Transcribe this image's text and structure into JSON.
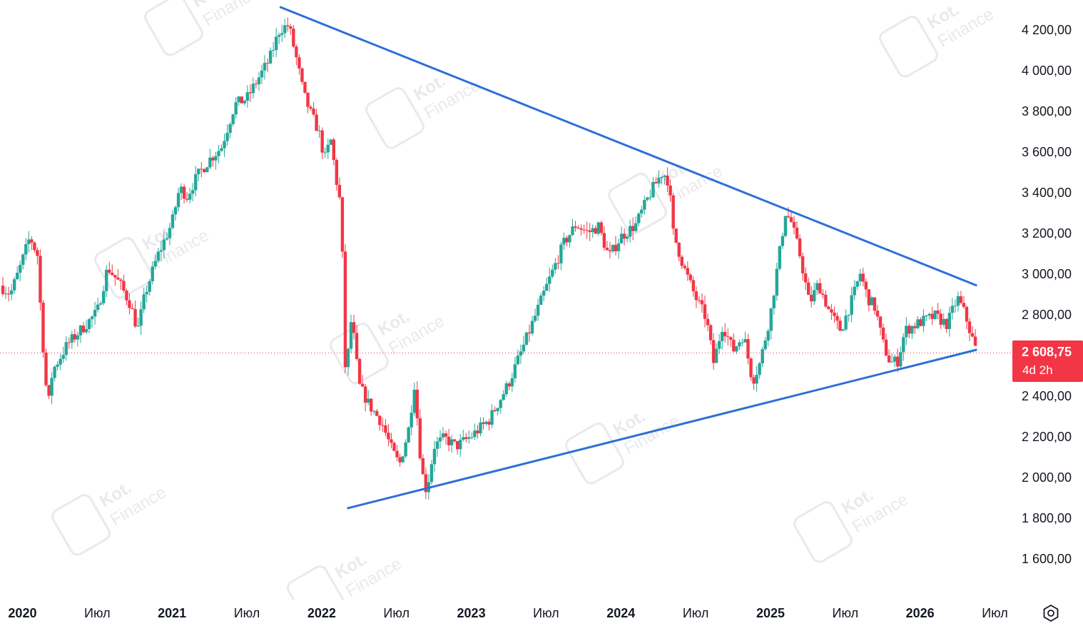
{
  "colors": {
    "up": "#26a69a",
    "down": "#f23645",
    "trendline": "#2e6fd6",
    "axis_text": "#131722",
    "current_price_line": "#f23645",
    "watermark": "#e9e9ee"
  },
  "price_label": {
    "value": "2 608,75",
    "countdown": "4d 2h"
  },
  "watermark_text": [
    "Kot.",
    "Finance"
  ],
  "settings_icon": "settings-icon",
  "chart_data": {
    "type": "candlestick",
    "title": "",
    "xlabel": "",
    "ylabel": "",
    "ylim": [
      1500,
      4300
    ],
    "y_axis_position": "right",
    "y_ticks": [
      {
        "value": 4200,
        "label": "4 200,00"
      },
      {
        "value": 4000,
        "label": "4 000,00"
      },
      {
        "value": 3800,
        "label": "3 800,00"
      },
      {
        "value": 3600,
        "label": "3 600,00"
      },
      {
        "value": 3400,
        "label": "3 400,00"
      },
      {
        "value": 3200,
        "label": "3 200,00"
      },
      {
        "value": 3000,
        "label": "3 000,00"
      },
      {
        "value": 2800,
        "label": "2 800,00"
      },
      {
        "value": 2400,
        "label": "2 400,00"
      },
      {
        "value": 2200,
        "label": "2 200,00"
      },
      {
        "value": 2000,
        "label": "2 000,00"
      },
      {
        "value": 1800,
        "label": "1 800,00"
      },
      {
        "value": 1600,
        "label": "1 600,00"
      }
    ],
    "x_range": [
      2019.85,
      2026.55
    ],
    "x_ticks": [
      {
        "value": 2020.0,
        "label": "2020",
        "bold": true
      },
      {
        "value": 2020.5,
        "label": "Июл",
        "bold": false
      },
      {
        "value": 2021.0,
        "label": "2021",
        "bold": true
      },
      {
        "value": 2021.5,
        "label": "Июл",
        "bold": false
      },
      {
        "value": 2022.0,
        "label": "2022",
        "bold": true
      },
      {
        "value": 2022.5,
        "label": "Июл",
        "bold": false
      },
      {
        "value": 2023.0,
        "label": "2023",
        "bold": true
      },
      {
        "value": 2023.5,
        "label": "Июл",
        "bold": false
      },
      {
        "value": 2024.0,
        "label": "2024",
        "bold": true
      },
      {
        "value": 2024.5,
        "label": "Июл",
        "bold": false
      },
      {
        "value": 2025.0,
        "label": "2025",
        "bold": true
      },
      {
        "value": 2025.5,
        "label": "Июл",
        "bold": false
      },
      {
        "value": 2026.0,
        "label": "2026",
        "bold": true
      },
      {
        "value": 2026.5,
        "label": "Июл",
        "bold": false
      }
    ],
    "current_price": 2608.75,
    "price_path": [
      [
        2019.85,
        2940
      ],
      [
        2019.92,
        2900
      ],
      [
        2019.98,
        3020
      ],
      [
        2020.05,
        3180
      ],
      [
        2020.1,
        3090
      ],
      [
        2020.13,
        2720
      ],
      [
        2020.17,
        2330
      ],
      [
        2020.2,
        2520
      ],
      [
        2020.3,
        2650
      ],
      [
        2020.4,
        2730
      ],
      [
        2020.5,
        2810
      ],
      [
        2020.57,
        3030
      ],
      [
        2020.65,
        2950
      ],
      [
        2020.72,
        2850
      ],
      [
        2020.77,
        2720
      ],
      [
        2020.82,
        2900
      ],
      [
        2020.9,
        3080
      ],
      [
        2021.0,
        3250
      ],
      [
        2021.05,
        3420
      ],
      [
        2021.1,
        3380
      ],
      [
        2021.17,
        3480
      ],
      [
        2021.25,
        3560
      ],
      [
        2021.33,
        3620
      ],
      [
        2021.42,
        3830
      ],
      [
        2021.5,
        3860
      ],
      [
        2021.57,
        3950
      ],
      [
        2021.65,
        4050
      ],
      [
        2021.72,
        4200
      ],
      [
        2021.78,
        4220
      ],
      [
        2021.83,
        4060
      ],
      [
        2021.88,
        3880
      ],
      [
        2021.93,
        3780
      ],
      [
        2021.98,
        3700
      ],
      [
        2022.02,
        3560
      ],
      [
        2022.06,
        3660
      ],
      [
        2022.1,
        3450
      ],
      [
        2022.13,
        3320
      ],
      [
        2022.16,
        2480
      ],
      [
        2022.2,
        2790
      ],
      [
        2022.25,
        2450
      ],
      [
        2022.32,
        2350
      ],
      [
        2022.4,
        2270
      ],
      [
        2022.47,
        2130
      ],
      [
        2022.52,
        2060
      ],
      [
        2022.58,
        2230
      ],
      [
        2022.62,
        2460
      ],
      [
        2022.66,
        2100
      ],
      [
        2022.69,
        1930
      ],
      [
        2022.72,
        2000
      ],
      [
        2022.75,
        2150
      ],
      [
        2022.82,
        2190
      ],
      [
        2022.9,
        2150
      ],
      [
        2023.0,
        2200
      ],
      [
        2023.12,
        2280
      ],
      [
        2023.25,
        2460
      ],
      [
        2023.38,
        2700
      ],
      [
        2023.5,
        2930
      ],
      [
        2023.62,
        3150
      ],
      [
        2023.7,
        3240
      ],
      [
        2023.78,
        3200
      ],
      [
        2023.85,
        3230
      ],
      [
        2023.92,
        3080
      ],
      [
        2024.0,
        3180
      ],
      [
        2024.1,
        3240
      ],
      [
        2024.2,
        3400
      ],
      [
        2024.28,
        3500
      ],
      [
        2024.32,
        3450
      ],
      [
        2024.35,
        3200
      ],
      [
        2024.42,
        3030
      ],
      [
        2024.5,
        2880
      ],
      [
        2024.57,
        2780
      ],
      [
        2024.62,
        2560
      ],
      [
        2024.68,
        2750
      ],
      [
        2024.75,
        2620
      ],
      [
        2024.82,
        2700
      ],
      [
        2024.88,
        2470
      ],
      [
        2024.93,
        2560
      ],
      [
        2025.0,
        2800
      ],
      [
        2025.05,
        3050
      ],
      [
        2025.1,
        3300
      ],
      [
        2025.14,
        3250
      ],
      [
        2025.2,
        3080
      ],
      [
        2025.26,
        2850
      ],
      [
        2025.32,
        2950
      ],
      [
        2025.4,
        2800
      ],
      [
        2025.47,
        2720
      ],
      [
        2025.55,
        2880
      ],
      [
        2025.6,
        3000
      ],
      [
        2025.65,
        2880
      ],
      [
        2025.7,
        2830
      ],
      [
        2025.75,
        2660
      ],
      [
        2025.8,
        2560
      ],
      [
        2025.85,
        2570
      ],
      [
        2025.9,
        2720
      ],
      [
        2026.0,
        2760
      ],
      [
        2026.1,
        2790
      ],
      [
        2026.18,
        2750
      ],
      [
        2026.25,
        2880
      ],
      [
        2026.3,
        2800
      ],
      [
        2026.34,
        2700
      ],
      [
        2026.38,
        2608.75
      ]
    ],
    "trendlines": [
      {
        "name": "upper",
        "points": [
          [
            2021.72,
            4310
          ],
          [
            2026.38,
            2940
          ]
        ]
      },
      {
        "name": "lower",
        "points": [
          [
            2022.17,
            1845
          ],
          [
            2026.38,
            2625
          ]
        ]
      }
    ]
  }
}
